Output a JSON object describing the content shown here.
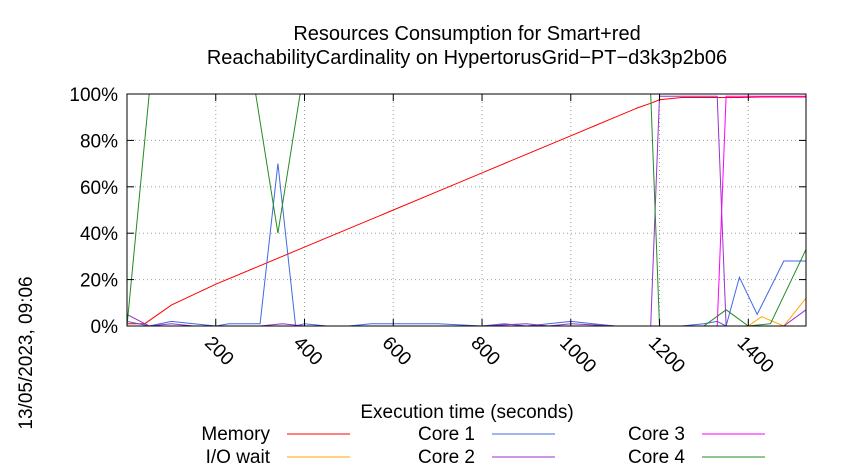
{
  "chart_data": {
    "type": "line",
    "title_line1": "Resources Consumption for Smart+red",
    "title_line2": "ReachabilityCardinality on HypertorusGrid−PT−d3k3p2b06",
    "xlabel": "Execution time (seconds)",
    "ylabel": "",
    "side_label": "13/05/2023, 09:06",
    "xlim": [
      0,
      1530
    ],
    "ylim": [
      0,
      100
    ],
    "x_ticks": [
      200,
      400,
      600,
      800,
      1000,
      1200,
      1400
    ],
    "y_ticks": [
      0,
      20,
      40,
      60,
      80,
      100
    ],
    "y_tick_labels": [
      "0%",
      "20%",
      "40%",
      "60%",
      "80%",
      "100%"
    ],
    "grid": true,
    "legend_position": "bottom",
    "series": [
      {
        "name": "Memory",
        "color": "#ff0000",
        "x": [
          0,
          40,
          100,
          200,
          300,
          400,
          500,
          600,
          700,
          800,
          900,
          1000,
          1050,
          1100,
          1150,
          1180,
          1200,
          1250,
          1300,
          1340,
          1380,
          1430,
          1530
        ],
        "y": [
          1,
          1,
          9,
          18,
          26,
          34,
          42,
          50,
          58,
          66,
          74,
          82,
          86,
          90,
          94,
          96,
          97.5,
          98.5,
          98.5,
          98.5,
          98.5,
          98.7,
          98.7
        ]
      },
      {
        "name": "I/O wait",
        "color": "#ffa500",
        "x": [
          0,
          50,
          100,
          200,
          300,
          400,
          500,
          600,
          700,
          800,
          900,
          1000,
          1100,
          1200,
          1300,
          1350,
          1400,
          1430,
          1480,
          1530
        ],
        "y": [
          0,
          0,
          0,
          0,
          0,
          0,
          0,
          0,
          0,
          0,
          0,
          0,
          0,
          0,
          0,
          0,
          0,
          4,
          0,
          12
        ]
      },
      {
        "name": "Core 1",
        "color": "#4169e1",
        "x": [
          0,
          50,
          100,
          150,
          200,
          230,
          300,
          340,
          380,
          400,
          450,
          500,
          550,
          600,
          700,
          800,
          850,
          900,
          950,
          1000,
          1050,
          1100,
          1150,
          1200,
          1250,
          1300,
          1330,
          1350,
          1380,
          1420,
          1480,
          1530
        ],
        "y": [
          2,
          0,
          2,
          1,
          0,
          1,
          1,
          70,
          0,
          1,
          0,
          0,
          1,
          1,
          1,
          0,
          1,
          0,
          1,
          2,
          1,
          0,
          0,
          0,
          0,
          1,
          2,
          0,
          21,
          5,
          28,
          28
        ]
      },
      {
        "name": "Core 2",
        "color": "#9932cc",
        "x": [
          0,
          50,
          100,
          150,
          200,
          250,
          300,
          350,
          400,
          500,
          600,
          700,
          800,
          900,
          950,
          1000,
          1100,
          1150,
          1180,
          1200,
          1260,
          1300,
          1330,
          1350,
          1400,
          1450,
          1480,
          1530
        ],
        "y": [
          5,
          0,
          1,
          0,
          0,
          0,
          0,
          1,
          0,
          0,
          0,
          0,
          0,
          1,
          0,
          1,
          0,
          0,
          0,
          99,
          99,
          99,
          99,
          0,
          0,
          0,
          0,
          7
        ]
      },
      {
        "name": "Core 3",
        "color": "#ff00ff",
        "x": [
          0,
          100,
          200,
          300,
          400,
          500,
          600,
          700,
          800,
          900,
          1000,
          1100,
          1200,
          1300,
          1330,
          1350,
          1360,
          1400,
          1450,
          1530
        ],
        "y": [
          0,
          0,
          0,
          0,
          0,
          0,
          0,
          0,
          0,
          0,
          0,
          0,
          0,
          0,
          0,
          99,
          99,
          99,
          99,
          99
        ]
      },
      {
        "name": "Core 4",
        "color": "#228b22",
        "x": [
          0,
          50,
          100,
          150,
          200,
          250,
          290,
          340,
          390,
          450,
          500,
          600,
          700,
          800,
          900,
          1000,
          1100,
          1150,
          1180,
          1200,
          1250,
          1300,
          1350,
          1400,
          1450,
          1530
        ],
        "y": [
          0,
          100,
          100,
          100,
          100,
          100,
          100,
          40,
          100,
          100,
          100,
          100,
          100,
          100,
          100,
          100,
          100,
          100,
          100,
          0,
          0,
          0,
          7,
          0,
          1,
          33
        ]
      }
    ]
  }
}
